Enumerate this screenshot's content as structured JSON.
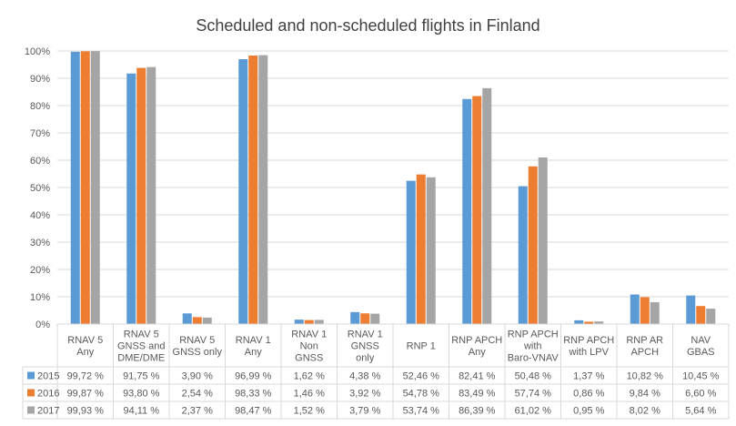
{
  "chart_data": {
    "type": "bar",
    "title": "Scheduled and non-scheduled flights in Finland",
    "categories": [
      [
        "RNAV 5",
        "Any"
      ],
      [
        "RNAV 5",
        "GNSS and",
        "DME/DME"
      ],
      [
        "RNAV 5",
        "GNSS only"
      ],
      [
        "RNAV 1",
        "Any"
      ],
      [
        "RNAV 1",
        "Non",
        "GNSS"
      ],
      [
        "RNAV 1",
        "GNSS",
        "only"
      ],
      [
        "RNP 1"
      ],
      [
        "RNP APCH",
        "Any"
      ],
      [
        "RNP APCH",
        "with",
        "Baro-VNAV"
      ],
      [
        "RNP APCH",
        "with LPV"
      ],
      [
        "RNP AR",
        "APCH"
      ],
      [
        "NAV",
        "GBAS"
      ]
    ],
    "ylim": [
      0,
      100
    ],
    "yticks": [
      "0%",
      "10%",
      "20%",
      "30%",
      "40%",
      "50%",
      "60%",
      "70%",
      "80%",
      "90%",
      "100%"
    ],
    "grid": true,
    "legend": "data-table",
    "series": [
      {
        "name": "2015",
        "color": "#5B9BD5",
        "values": [
          99.72,
          91.75,
          3.9,
          96.99,
          1.62,
          4.38,
          52.46,
          82.41,
          50.48,
          1.37,
          10.82,
          10.45
        ],
        "labels": [
          "99,72 %",
          "91,75 %",
          "3,90 %",
          "96,99 %",
          "1,62 %",
          "4,38 %",
          "52,46 %",
          "82,41 %",
          "50,48 %",
          "1,37 %",
          "10,82 %",
          "10,45 %"
        ]
      },
      {
        "name": "2016",
        "color": "#ED7D31",
        "values": [
          99.87,
          93.8,
          2.54,
          98.33,
          1.46,
          3.92,
          54.78,
          83.49,
          57.74,
          0.86,
          9.84,
          6.6
        ],
        "labels": [
          "99,87 %",
          "93,80 %",
          "2,54 %",
          "98,33 %",
          "1,46 %",
          "3,92 %",
          "54,78 %",
          "83,49 %",
          "57,74 %",
          "0,86 %",
          "9,84 %",
          "6,60 %"
        ]
      },
      {
        "name": "2017",
        "color": "#A5A5A5",
        "values": [
          99.93,
          94.11,
          2.37,
          98.47,
          1.52,
          3.79,
          53.74,
          86.39,
          61.02,
          0.95,
          8.02,
          5.64
        ],
        "labels": [
          "99,93 %",
          "94,11 %",
          "2,37 %",
          "98,47 %",
          "1,52 %",
          "3,79 %",
          "53,74 %",
          "86,39 %",
          "61,02 %",
          "0,95 %",
          "8,02 %",
          "5,64 %"
        ]
      }
    ]
  }
}
